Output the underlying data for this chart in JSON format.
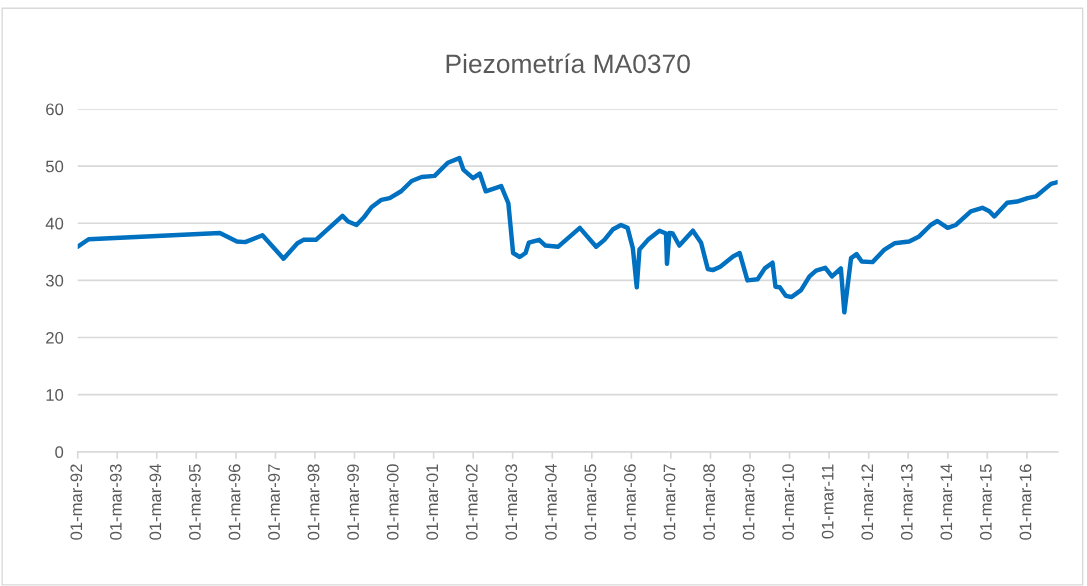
{
  "chart_data": {
    "type": "line",
    "title": "Piezometría MA0370",
    "x": [
      "1992-03-01",
      "1992-06-10",
      "1995-10-05",
      "1996-03-10",
      "1996-05-25",
      "1996-11-01",
      "1997-05-15",
      "1997-09-20",
      "1997-11-15",
      "1998-03-10",
      "1998-11-10",
      "1999-01-01",
      "1999-03-20",
      "1999-05-25",
      "1999-08-05",
      "1999-11-05",
      "2000-01-20",
      "2000-05-05",
      "2000-08-10",
      "2000-11-10",
      "2001-03-10",
      "2001-07-10",
      "2001-10-25",
      "2001-11-30",
      "2002-02-28",
      "2002-05-01",
      "2002-06-25",
      "2002-11-15",
      "2003-01-20",
      "2003-03-05",
      "2003-05-05",
      "2003-06-28",
      "2003-07-28",
      "2003-11-01",
      "2003-12-28",
      "2004-04-25",
      "2004-11-10",
      "2005-04-10",
      "2005-06-25",
      "2005-09-10",
      "2005-11-25",
      "2006-01-25",
      "2006-03-15",
      "2006-04-20",
      "2006-05-15",
      "2006-08-01",
      "2006-11-15",
      "2007-01-15",
      "2007-01-24",
      "2007-02-15",
      "2007-03-18",
      "2007-05-18",
      "2007-09-20",
      "2007-12-05",
      "2008-02-05",
      "2008-03-22",
      "2008-05-30",
      "2008-09-25",
      "2008-11-25",
      "2009-02-05",
      "2009-05-10",
      "2009-07-15",
      "2009-09-25",
      "2009-10-22",
      "2009-12-01",
      "2010-01-25",
      "2010-03-20",
      "2010-06-15",
      "2010-09-01",
      "2010-11-01",
      "2011-01-25",
      "2011-03-28",
      "2011-06-18",
      "2011-07-20",
      "2011-09-20",
      "2011-11-10",
      "2011-12-28",
      "2012-04-05",
      "2012-07-25",
      "2012-10-25",
      "2013-03-10",
      "2013-06-10",
      "2013-09-25",
      "2013-11-25",
      "2014-02-28",
      "2014-05-15",
      "2014-09-30",
      "2015-01-15",
      "2015-03-20",
      "2015-05-05",
      "2015-09-01",
      "2015-12-01",
      "2016-03-08",
      "2016-05-22",
      "2016-10-10",
      "2016-12-10"
    ],
    "series": [
      {
        "color": "#0070c0",
        "values": [
          35.9,
          37.2,
          38.3,
          36.8,
          36.7,
          37.9,
          33.8,
          36.5,
          37.1,
          37.1,
          41.3,
          40.3,
          39.7,
          41.0,
          42.8,
          44.1,
          44.4,
          45.6,
          47.4,
          48.1,
          48.3,
          50.6,
          51.4,
          49.4,
          47.9,
          48.7,
          45.6,
          46.5,
          43.5,
          34.8,
          34.1,
          34.8,
          36.6,
          37.1,
          36.1,
          35.9,
          39.2,
          35.9,
          37.1,
          38.9,
          39.7,
          39.2,
          35.6,
          28.8,
          35.4,
          37.1,
          38.7,
          38.2,
          32.9,
          38.3,
          38.2,
          36.1,
          38.7,
          36.6,
          32.0,
          31.8,
          32.4,
          34.2,
          34.8,
          30.0,
          30.2,
          32.1,
          33.1,
          28.9,
          28.8,
          27.3,
          27.1,
          28.3,
          30.7,
          31.7,
          32.2,
          30.7,
          32.1,
          24.4,
          33.9,
          34.6,
          33.3,
          33.2,
          35.4,
          36.5,
          36.8,
          37.7,
          39.7,
          40.4,
          39.2,
          39.7,
          42.1,
          42.7,
          42.1,
          41.2,
          43.6,
          43.8,
          44.4,
          44.7,
          46.9,
          47.2
        ]
      }
    ],
    "xlim": [
      "1992-03-01",
      "2016-12-10"
    ],
    "xticks": [
      {
        "value": "1992-03-01",
        "label": "01-mar-92"
      },
      {
        "value": "1993-03-01",
        "label": "01-mar-93"
      },
      {
        "value": "1994-03-01",
        "label": "01-mar-94"
      },
      {
        "value": "1995-03-01",
        "label": "01-mar-95"
      },
      {
        "value": "1996-03-01",
        "label": "01-mar-96"
      },
      {
        "value": "1997-03-01",
        "label": "01-mar-97"
      },
      {
        "value": "1998-03-01",
        "label": "01-mar-98"
      },
      {
        "value": "1999-03-01",
        "label": "01-mar-99"
      },
      {
        "value": "2000-03-01",
        "label": "01-mar-00"
      },
      {
        "value": "2001-03-01",
        "label": "01-mar-01"
      },
      {
        "value": "2002-03-01",
        "label": "01-mar-02"
      },
      {
        "value": "2003-03-01",
        "label": "01-mar-03"
      },
      {
        "value": "2004-03-01",
        "label": "01-mar-04"
      },
      {
        "value": "2005-03-01",
        "label": "01-mar-05"
      },
      {
        "value": "2006-03-01",
        "label": "01-mar-06"
      },
      {
        "value": "2007-03-01",
        "label": "01-mar-07"
      },
      {
        "value": "2008-03-01",
        "label": "01-mar-08"
      },
      {
        "value": "2009-03-01",
        "label": "01-mar-09"
      },
      {
        "value": "2010-03-01",
        "label": "01-mar-10"
      },
      {
        "value": "2011-03-01",
        "label": "01-mar-11"
      },
      {
        "value": "2012-03-01",
        "label": "01-mar-12"
      },
      {
        "value": "2013-03-01",
        "label": "01-mar-13"
      },
      {
        "value": "2014-03-01",
        "label": "01-mar-14"
      },
      {
        "value": "2015-03-01",
        "label": "01-mar-15"
      },
      {
        "value": "2016-03-01",
        "label": "01-mar-16"
      }
    ],
    "ylim": [
      0,
      60
    ],
    "yticks": [
      0,
      10,
      20,
      30,
      40,
      50,
      60
    ],
    "grid": "y",
    "legend": false,
    "marker": "none",
    "line_style": "solid"
  }
}
